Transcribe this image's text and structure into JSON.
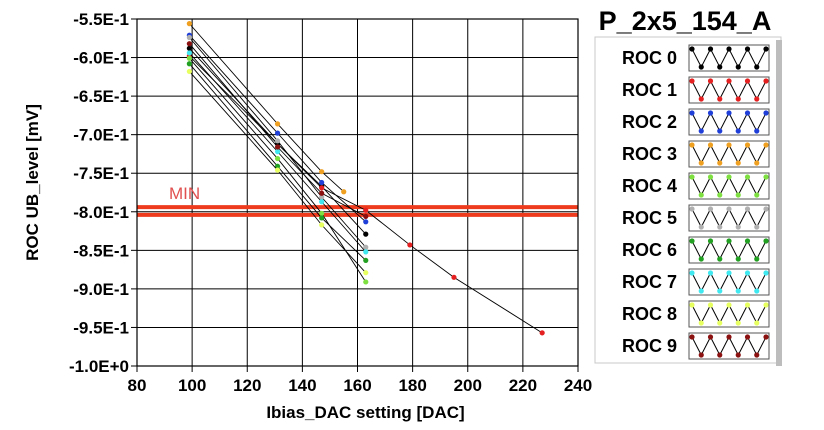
{
  "chart_data": {
    "type": "line",
    "title": "P_2x5_154_A",
    "xlabel": "Ibias_DAC setting [DAC]",
    "ylabel": "ROC UB_level [mV]",
    "xlim": [
      80,
      240
    ],
    "ylim": [
      -1.0,
      -0.55
    ],
    "x_ticks": [
      80,
      100,
      120,
      140,
      160,
      180,
      200,
      220,
      240
    ],
    "y_ticks": [
      -0.55,
      -0.6,
      -0.65,
      -0.7,
      -0.75,
      -0.8,
      -0.85,
      -0.9,
      -0.95,
      -1.0
    ],
    "x_tick_labels": [
      "80",
      "100",
      "120",
      "140",
      "160",
      "180",
      "200",
      "220",
      "240"
    ],
    "y_tick_labels": [
      "-5.5E-1",
      "-6.0E-1",
      "-6.5E-1",
      "-7.0E-1",
      "-7.5E-1",
      "-8.0E-1",
      "-8.5E-1",
      "-9.0E-1",
      "-9.5E-1",
      "-1.0E+0"
    ],
    "grid": true,
    "legend_position": "right",
    "min_line": {
      "label": "MIN",
      "bands": [
        -0.794,
        -0.804
      ],
      "color": "#ee3b1e"
    },
    "series": [
      {
        "name": "ROC 0",
        "color": "#000000",
        "x": [
          99,
          131,
          147,
          163
        ],
        "y": [
          -0.588,
          -0.712,
          -0.767,
          -0.829
        ]
      },
      {
        "name": "ROC 1",
        "color": "#e52020",
        "x": [
          99,
          147,
          163,
          179,
          195,
          227
        ],
        "y": [
          -0.598,
          -0.769,
          -0.798,
          -0.843,
          -0.885,
          -0.957
        ]
      },
      {
        "name": "ROC 2",
        "color": "#1f3fd8",
        "x": [
          99,
          131,
          147,
          163
        ],
        "y": [
          -0.571,
          -0.698,
          -0.762,
          -0.813
        ]
      },
      {
        "name": "ROC 3",
        "color": "#f0a020",
        "x": [
          99,
          131,
          147,
          155
        ],
        "y": [
          -0.556,
          -0.686,
          -0.748,
          -0.774
        ]
      },
      {
        "name": "ROC 4",
        "color": "#7ee040",
        "x": [
          99,
          131,
          147,
          163
        ],
        "y": [
          -0.601,
          -0.731,
          -0.802,
          -0.891
        ]
      },
      {
        "name": "ROC 5",
        "color": "#b0b0b0",
        "x": [
          99,
          131,
          147,
          163
        ],
        "y": [
          -0.574,
          -0.708,
          -0.781,
          -0.846
        ]
      },
      {
        "name": "ROC 6",
        "color": "#22a022",
        "x": [
          99,
          131,
          147,
          163
        ],
        "y": [
          -0.608,
          -0.741,
          -0.808,
          -0.863
        ]
      },
      {
        "name": "ROC 7",
        "color": "#40e8f0",
        "x": [
          99,
          131,
          147,
          163
        ],
        "y": [
          -0.594,
          -0.722,
          -0.787,
          -0.852
        ]
      },
      {
        "name": "ROC 8",
        "color": "#e8ff60",
        "x": [
          99,
          131,
          147,
          163
        ],
        "y": [
          -0.618,
          -0.746,
          -0.817,
          -0.879
        ]
      },
      {
        "name": "ROC 9",
        "color": "#8b1010",
        "x": [
          99,
          131,
          147,
          163
        ],
        "y": [
          -0.582,
          -0.716,
          -0.776,
          -0.806
        ]
      }
    ]
  }
}
